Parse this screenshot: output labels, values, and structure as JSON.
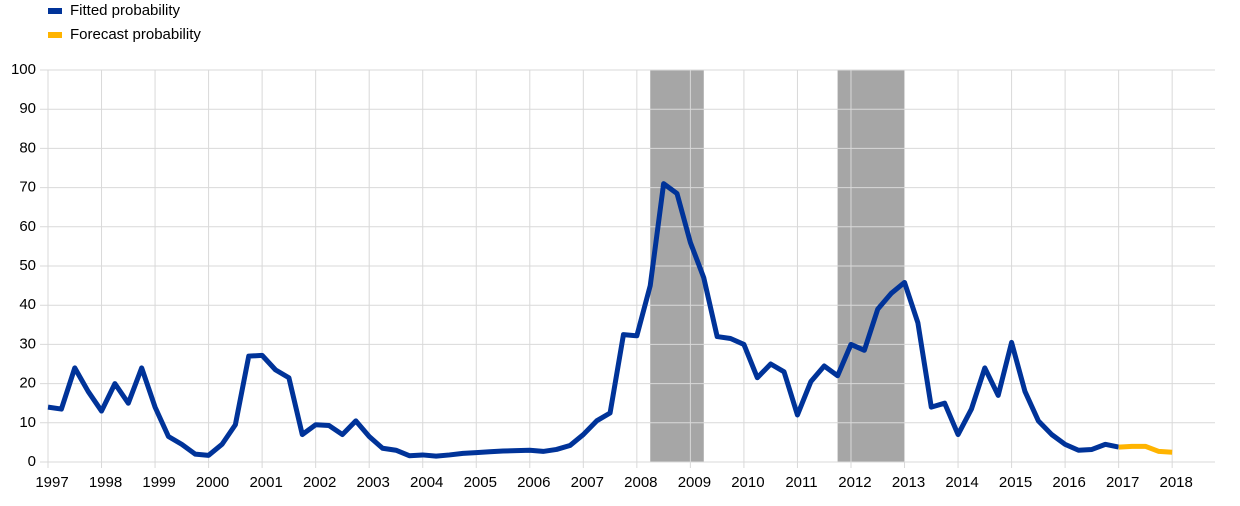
{
  "chart_data": {
    "type": "line",
    "legend": "top-left",
    "grid": true,
    "xlim": [
      1997,
      2018.8
    ],
    "xticks": [
      1997,
      1998,
      1999,
      2000,
      2001,
      2002,
      2003,
      2004,
      2005,
      2006,
      2007,
      2008,
      2009,
      2010,
      2011,
      2012,
      2013,
      2014,
      2015,
      2016,
      2017,
      2018
    ],
    "ylim": [
      0,
      100
    ],
    "yticks": [
      0,
      10,
      20,
      30,
      40,
      50,
      60,
      70,
      80,
      90,
      100
    ],
    "shaded_color": "#a6a6a6",
    "shaded_periods": [
      [
        2008.25,
        2009.25
      ],
      [
        2011.75,
        2013.0
      ]
    ],
    "series": [
      {
        "name": "Fitted probability",
        "color": "#003399",
        "x": [
          1997,
          1997.25,
          1997.5,
          1997.75,
          1998,
          1998.25,
          1998.5,
          1998.75,
          1999,
          1999.25,
          1999.5,
          1999.75,
          2000,
          2000.25,
          2000.5,
          2000.75,
          2001,
          2001.25,
          2001.5,
          2001.75,
          2002,
          2002.25,
          2002.5,
          2002.75,
          2003,
          2003.25,
          2003.5,
          2003.75,
          2004,
          2004.25,
          2004.5,
          2004.75,
          2005,
          2005.25,
          2005.5,
          2005.75,
          2006,
          2006.25,
          2006.5,
          2006.75,
          2007,
          2007.25,
          2007.5,
          2007.75,
          2008,
          2008.25,
          2008.5,
          2008.75,
          2009,
          2009.25,
          2009.5,
          2009.75,
          2010,
          2010.25,
          2010.5,
          2010.75,
          2011,
          2011.25,
          2011.5,
          2011.75,
          2012,
          2012.25,
          2012.5,
          2012.75,
          2013,
          2013.25,
          2013.5,
          2013.75,
          2014,
          2014.25,
          2014.5,
          2014.75,
          2015,
          2015.25,
          2015.5,
          2015.75,
          2016,
          2016.25,
          2016.5,
          2016.75,
          2017
        ],
        "values": [
          14,
          13.5,
          24,
          18,
          13,
          20,
          15,
          24,
          14,
          6.5,
          4.5,
          2,
          1.7,
          4.5,
          9.5,
          27,
          27.2,
          23.5,
          21.5,
          7,
          9.5,
          9.3,
          7,
          10.5,
          6.5,
          3.5,
          3,
          1.6,
          1.8,
          1.5,
          1.8,
          2.2,
          2.4,
          2.6,
          2.8,
          2.9,
          3,
          2.7,
          3.2,
          4.2,
          7,
          10.5,
          12.5,
          32.5,
          32.2,
          45,
          71,
          68.5,
          56,
          47,
          32,
          31.5,
          30,
          21.5,
          25,
          23,
          12,
          20.5,
          24.5,
          22,
          30,
          28.5,
          39,
          43,
          45.8,
          35.5,
          14,
          15,
          7,
          13.5,
          24,
          17,
          30.5,
          18,
          10.5,
          7,
          4.5,
          3,
          3.2,
          4.5,
          3.8
        ]
      },
      {
        "name": "Forecast probability",
        "color": "#ffb400",
        "x": [
          2017,
          2017.25,
          2017.5,
          2017.75,
          2018
        ],
        "values": [
          3.8,
          4,
          4,
          2.7,
          2.5
        ]
      }
    ]
  }
}
